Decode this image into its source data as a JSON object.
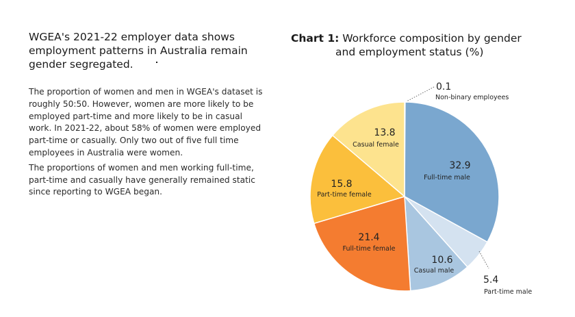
{
  "article": {
    "headline": "WGEA's 2021-22 employer data shows employment patterns in Australia remain gender segregated.",
    "paragraphs": [
      "The proportion of women and men in WGEA's dataset is roughly 50:50. However, women are more likely to be employed part-time and more likely to be in casual work. In 2021-22, about 58% of women were employed part-time or casually. Only two out of five full time employees in Australia were women.",
      "The proportions of women and men working full-time, part-time and casually have generally remained static since reporting to WGEA began."
    ]
  },
  "chart_data": {
    "type": "pie",
    "title_label": "Chart 1:",
    "title_line1": "Workforce composition by gender",
    "title_line2": "and employment status (%)",
    "slices": [
      {
        "name": "Non-binary employees",
        "value": 0.1,
        "display": "0.1",
        "color": "#2b2b2b"
      },
      {
        "name": "Full-time male",
        "value": 32.9,
        "display": "32.9",
        "color": "#7aa7cf"
      },
      {
        "name": "Part-time male",
        "value": 5.4,
        "display": "5.4",
        "color": "#d4e2f0"
      },
      {
        "name": "Casual male",
        "value": 10.6,
        "display": "10.6",
        "color": "#a9c6e0"
      },
      {
        "name": "Full-time female",
        "value": 21.4,
        "display": "21.4",
        "color": "#f47c30"
      },
      {
        "name": "Part-time female",
        "value": 15.8,
        "display": "15.8",
        "color": "#fbbf3c"
      },
      {
        "name": "Casual female",
        "value": 13.8,
        "display": "13.8",
        "color": "#fde38e"
      }
    ]
  }
}
